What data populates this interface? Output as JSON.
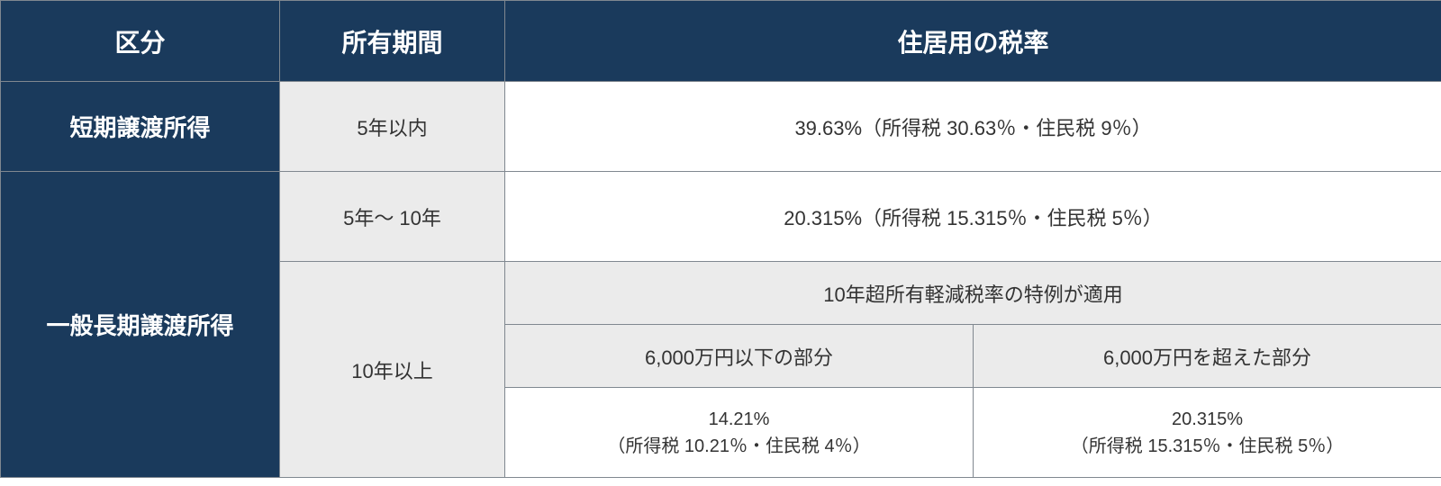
{
  "table": {
    "colors": {
      "header_bg": "#1a3a5c",
      "header_text": "#ffffff",
      "period_bg": "#ebebeb",
      "rate_bg": "#ffffff",
      "text": "#333333",
      "border": "#808890"
    },
    "headers": {
      "col1": "区分",
      "col2": "所有期間",
      "col3": "住居用の税率"
    },
    "rows": {
      "short_term": {
        "category": "短期譲渡所得",
        "period": "5年以内",
        "rate": "39.63%（所得税 30.63％・住民税 9％）"
      },
      "long_term": {
        "category": "一般長期譲渡所得",
        "period_5_10": "5年～ 10年",
        "rate_5_10": "20.315%（所得税 15.315％・住民税 5％）",
        "period_10plus": "10年以上",
        "over10_title": "10年超所有軽減税率の特例が適用",
        "under_6000_label": "6,000万円以下の部分",
        "over_6000_label": "6,000万円を超えた部分",
        "under_6000_rate_main": "14.21%",
        "under_6000_rate_detail": "（所得税 10.21％・住民税 4％）",
        "over_6000_rate_main": "20.315%",
        "over_6000_rate_detail": "（所得税 15.315％・住民税 5％）"
      }
    }
  }
}
